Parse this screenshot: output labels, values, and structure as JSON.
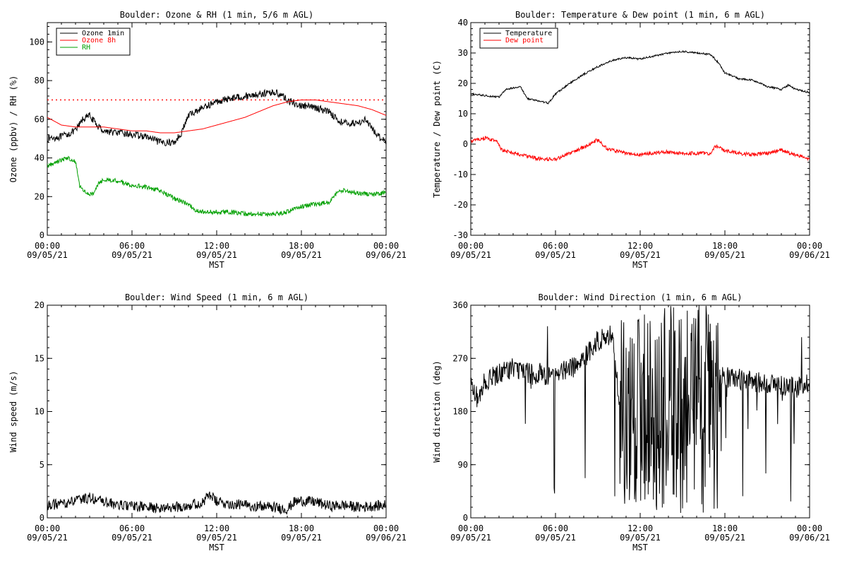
{
  "colors": {
    "black": "#000000",
    "red": "#ff0000",
    "green": "#00a000"
  },
  "chart_data": [
    {
      "id": "ozone",
      "type": "line",
      "title": "Boulder: Ozone & RH (1 min, 5/6 m AGL)",
      "ylabel": "Ozone (ppbv) / RH (%)",
      "xlabel": "MST",
      "xlim": [
        0,
        24
      ],
      "ylim": [
        0,
        110
      ],
      "yticks": [
        0,
        20,
        40,
        60,
        80,
        100
      ],
      "xticks": [
        {
          "v": 0,
          "time": "00:00",
          "date": "09/05/21"
        },
        {
          "v": 6,
          "time": "06:00",
          "date": "09/05/21"
        },
        {
          "v": 12,
          "time": "12:00",
          "date": "09/05/21"
        },
        {
          "v": 18,
          "time": "18:00",
          "date": "09/05/21"
        },
        {
          "v": 24,
          "time": "00:00",
          "date": "09/06/21"
        }
      ],
      "legend": "top-left",
      "hline": {
        "value": 70,
        "color": "#ff0000",
        "style": "dotted"
      },
      "series": [
        {
          "name": "Ozone 1min",
          "color": "#000000",
          "noise": 1.8,
          "x": [
            0,
            1,
            2,
            2.5,
            3,
            3.5,
            4,
            5,
            6,
            7,
            8,
            9,
            9.5,
            10,
            11,
            12,
            13,
            14,
            15,
            16,
            16.5,
            17,
            17.5,
            18,
            19,
            20,
            20.5,
            21,
            22,
            22.5,
            23,
            23.5,
            24
          ],
          "y": [
            50,
            51,
            54,
            60,
            62,
            57,
            54,
            53,
            52,
            51,
            48,
            48,
            53,
            62,
            66,
            69,
            71,
            72,
            73,
            74,
            73,
            70,
            68,
            67,
            66,
            64,
            60,
            58,
            58,
            60,
            55,
            51,
            49
          ]
        },
        {
          "name": "Ozone 8h",
          "color": "#ff0000",
          "noise": 0,
          "x": [
            0,
            1,
            2,
            3,
            4,
            5,
            6,
            7,
            8,
            9,
            10,
            11,
            12,
            13,
            14,
            15,
            16,
            17,
            18,
            19,
            20,
            21,
            22,
            23,
            24
          ],
          "y": [
            61,
            57,
            56,
            56,
            56,
            55,
            54,
            54,
            53,
            53,
            54,
            55,
            57,
            59,
            61,
            64,
            67,
            69,
            70,
            70,
            69,
            68,
            67,
            65,
            62
          ]
        },
        {
          "name": "RH",
          "color": "#00a000",
          "noise": 1.2,
          "x": [
            0,
            1,
            1.5,
            2,
            2.3,
            2.8,
            3.3,
            3.6,
            4,
            5,
            6,
            7,
            8,
            9,
            10,
            10.5,
            11,
            12,
            13,
            14,
            15,
            16,
            17,
            17.5,
            18,
            19,
            20,
            20.5,
            21,
            22,
            23,
            24
          ],
          "y": [
            36,
            39,
            40,
            38,
            25,
            22,
            21,
            27,
            29,
            28,
            26,
            25,
            23,
            19,
            16,
            13,
            12,
            12,
            12,
            11,
            11,
            11,
            12,
            14,
            15,
            16,
            17,
            22,
            23,
            22,
            21,
            22
          ]
        }
      ]
    },
    {
      "id": "temp",
      "type": "line",
      "title": "Boulder: Temperature & Dew point (1 min, 6 m AGL)",
      "ylabel": "Temperature / Dew point (C)",
      "xlabel": "MST",
      "xlim": [
        0,
        24
      ],
      "ylim": [
        -30,
        40
      ],
      "yticks": [
        -30,
        -20,
        -10,
        0,
        10,
        20,
        30,
        40
      ],
      "xticks": [
        {
          "v": 0,
          "time": "00:00",
          "date": "09/05/21"
        },
        {
          "v": 6,
          "time": "06:00",
          "date": "09/05/21"
        },
        {
          "v": 12,
          "time": "12:00",
          "date": "09/05/21"
        },
        {
          "v": 18,
          "time": "18:00",
          "date": "09/05/21"
        },
        {
          "v": 24,
          "time": "00:00",
          "date": "09/06/21"
        }
      ],
      "legend": "top-left",
      "series": [
        {
          "name": "Temperature",
          "color": "#000000",
          "noise": 0.3,
          "x": [
            0,
            1,
            2,
            2.5,
            3,
            3.5,
            4,
            4.5,
            5,
            5.5,
            6,
            7,
            8,
            9,
            10,
            11,
            12,
            13,
            14,
            15,
            16,
            17,
            17.5,
            18,
            19,
            20,
            21,
            22,
            22.5,
            23,
            24
          ],
          "y": [
            16.5,
            16,
            15.5,
            18,
            18.5,
            19,
            15,
            14.5,
            14,
            13.5,
            16.5,
            20,
            23,
            25.5,
            27.5,
            28.5,
            28,
            29,
            30,
            30.5,
            30,
            29.5,
            27,
            23.5,
            21.5,
            21,
            19,
            18,
            19.5,
            18,
            17
          ]
        },
        {
          "name": "Dew point",
          "color": "#ff0000",
          "noise": 0.6,
          "x": [
            0,
            1,
            1.8,
            2.2,
            3,
            4,
            5,
            6,
            7,
            8,
            9,
            9.5,
            10,
            11,
            12,
            13,
            14,
            15,
            16,
            17,
            17.3,
            18,
            19,
            20,
            21,
            22,
            23,
            24
          ],
          "y": [
            1,
            2,
            1,
            -2,
            -3,
            -4,
            -5,
            -5,
            -3,
            -1,
            1.5,
            -1,
            -2,
            -3,
            -3.5,
            -3,
            -2.5,
            -3,
            -3,
            -3,
            -0.5,
            -2,
            -3,
            -3.5,
            -3,
            -2,
            -3.5,
            -5
          ]
        }
      ]
    },
    {
      "id": "wspd",
      "type": "line",
      "title": "Boulder: Wind Speed (1 min, 6 m AGL)",
      "ylabel": "Wind speed (m/s)",
      "xlabel": "MST",
      "xlim": [
        0,
        24
      ],
      "ylim": [
        0,
        20
      ],
      "yticks": [
        0,
        5,
        10,
        15,
        20
      ],
      "xticks": [
        {
          "v": 0,
          "time": "00:00",
          "date": "09/05/21"
        },
        {
          "v": 6,
          "time": "06:00",
          "date": "09/05/21"
        },
        {
          "v": 12,
          "time": "12:00",
          "date": "09/05/21"
        },
        {
          "v": 18,
          "time": "18:00",
          "date": "09/05/21"
        },
        {
          "v": 24,
          "time": "00:00",
          "date": "09/06/21"
        }
      ],
      "series": [
        {
          "name": "",
          "color": "#000000",
          "noise": 0.5,
          "x": [
            0,
            1,
            2,
            3,
            4,
            5,
            6,
            7,
            8,
            9,
            10,
            11,
            11.5,
            12,
            13,
            14,
            15,
            16,
            17,
            17.5,
            18,
            19,
            20,
            21,
            22,
            23,
            24
          ],
          "y": [
            1.2,
            1.3,
            1.6,
            1.9,
            1.5,
            1.2,
            1.1,
            1.0,
            0.9,
            1.0,
            1.2,
            1.4,
            2.2,
            1.5,
            1.3,
            1.2,
            1.1,
            1.0,
            0.8,
            1.5,
            1.6,
            1.5,
            1.1,
            1.2,
            1.0,
            1.1,
            1.2
          ]
        }
      ]
    },
    {
      "id": "wdir",
      "type": "line",
      "title": "Boulder: Wind Direction (1 min, 6 m AGL)",
      "ylabel": "Wind direction (deg)",
      "xlabel": "MST",
      "xlim": [
        0,
        24
      ],
      "ylim": [
        0,
        360
      ],
      "yticks": [
        0,
        90,
        180,
        270,
        360
      ],
      "xticks": [
        {
          "v": 0,
          "time": "00:00",
          "date": "09/05/21"
        },
        {
          "v": 6,
          "time": "06:00",
          "date": "09/05/21"
        },
        {
          "v": 12,
          "time": "12:00",
          "date": "09/05/21"
        },
        {
          "v": 18,
          "time": "18:00",
          "date": "09/05/21"
        },
        {
          "v": 24,
          "time": "00:00",
          "date": "09/06/21"
        }
      ],
      "series": [
        {
          "name": "",
          "color": "#000000",
          "noise": 18,
          "chaotic": [
            10.5,
            17.5
          ],
          "x": [
            0,
            0.5,
            1,
            2,
            3,
            4,
            5,
            6,
            7,
            8,
            9,
            10,
            10.5,
            11,
            12,
            13,
            14,
            15,
            16,
            17,
            17.5,
            18,
            19,
            20,
            21,
            22,
            23,
            24
          ],
          "y": [
            230,
            200,
            230,
            245,
            255,
            245,
            240,
            245,
            250,
            270,
            300,
            310,
            200,
            180,
            180,
            180,
            180,
            180,
            180,
            180,
            240,
            238,
            235,
            230,
            228,
            225,
            220,
            230
          ]
        }
      ]
    }
  ]
}
